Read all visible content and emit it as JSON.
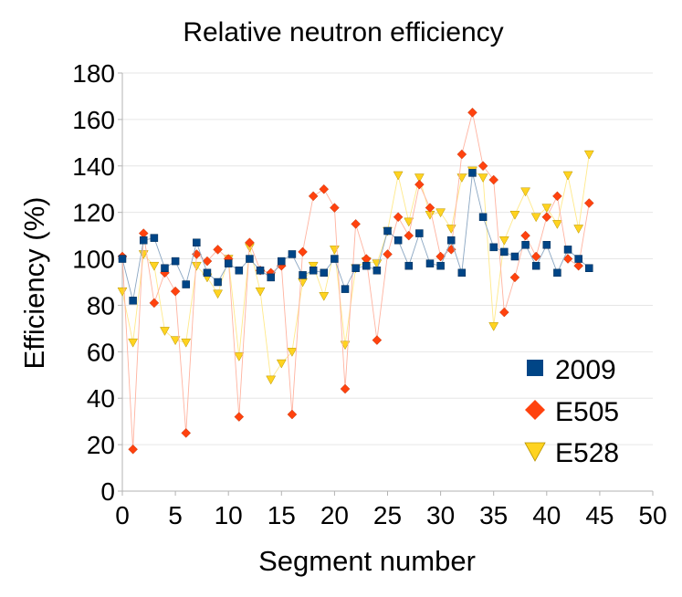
{
  "chart_data": {
    "type": "line",
    "title": "Relative neutron efficiency",
    "xlabel": "Segment number",
    "ylabel": "Efficiency (%)",
    "xlim": [
      0,
      50
    ],
    "ylim": [
      0,
      180
    ],
    "xticks": [
      0,
      5,
      10,
      15,
      20,
      25,
      30,
      35,
      40,
      45,
      50
    ],
    "yticks": [
      0,
      20,
      40,
      60,
      80,
      100,
      120,
      140,
      160,
      180
    ],
    "grid": true,
    "legend_position": "bottom-right",
    "series": [
      {
        "name": "2009",
        "marker": "square",
        "color": "#004586",
        "line_color": "#8aa6c2",
        "x": [
          0,
          1,
          2,
          3,
          4,
          5,
          6,
          7,
          8,
          9,
          10,
          11,
          12,
          13,
          14,
          15,
          16,
          17,
          18,
          19,
          20,
          21,
          22,
          23,
          24,
          25,
          26,
          27,
          28,
          29,
          30,
          31,
          32,
          33,
          34,
          35,
          36,
          37,
          38,
          39,
          40,
          41,
          42,
          43,
          44
        ],
        "y": [
          100,
          82,
          108,
          109,
          96,
          99,
          89,
          107,
          94,
          90,
          98,
          95,
          100,
          95,
          92,
          99,
          102,
          93,
          95,
          94,
          100,
          87,
          96,
          97,
          95,
          112,
          108,
          97,
          111,
          98,
          97,
          108,
          94,
          137,
          118,
          105,
          103,
          101,
          106,
          97,
          106,
          94,
          104,
          100,
          96
        ]
      },
      {
        "name": "E505",
        "marker": "diamond",
        "color": "#ff420e",
        "line_color": "#ffb3a0",
        "x": [
          0,
          1,
          2,
          3,
          4,
          5,
          6,
          7,
          8,
          9,
          10,
          11,
          12,
          13,
          14,
          15,
          16,
          17,
          18,
          19,
          20,
          21,
          22,
          23,
          24,
          25,
          26,
          27,
          28,
          29,
          30,
          31,
          32,
          33,
          34,
          35,
          36,
          37,
          38,
          39,
          40,
          41,
          42,
          43,
          44
        ],
        "y": [
          101,
          18,
          111,
          81,
          94,
          86,
          25,
          102,
          99,
          104,
          100,
          32,
          107,
          95,
          94,
          97,
          33,
          103,
          127,
          130,
          122,
          44,
          115,
          100,
          65,
          102,
          118,
          110,
          132,
          122,
          101,
          104,
          145,
          163,
          140,
          134,
          77,
          92,
          110,
          101,
          118,
          127,
          100,
          97,
          124
        ]
      },
      {
        "name": "E528",
        "marker": "triangle-down",
        "color": "#ffd320",
        "line_color": "#ffe98a",
        "x": [
          0,
          1,
          2,
          3,
          4,
          5,
          6,
          7,
          8,
          9,
          10,
          11,
          12,
          13,
          14,
          15,
          16,
          17,
          18,
          19,
          20,
          21,
          22,
          23,
          24,
          25,
          26,
          27,
          28,
          29,
          30,
          31,
          32,
          33,
          34,
          35,
          36,
          37,
          38,
          39,
          40,
          41,
          42,
          43,
          44
        ],
        "y": [
          86,
          64,
          102,
          97,
          69,
          65,
          64,
          97,
          92,
          85,
          100,
          58,
          105,
          86,
          48,
          55,
          60,
          90,
          97,
          84,
          104,
          63,
          96,
          99,
          98,
          112,
          136,
          116,
          135,
          119,
          120,
          113,
          135,
          138,
          135,
          71,
          108,
          119,
          129,
          118,
          122,
          115,
          136,
          113,
          145
        ]
      }
    ]
  }
}
